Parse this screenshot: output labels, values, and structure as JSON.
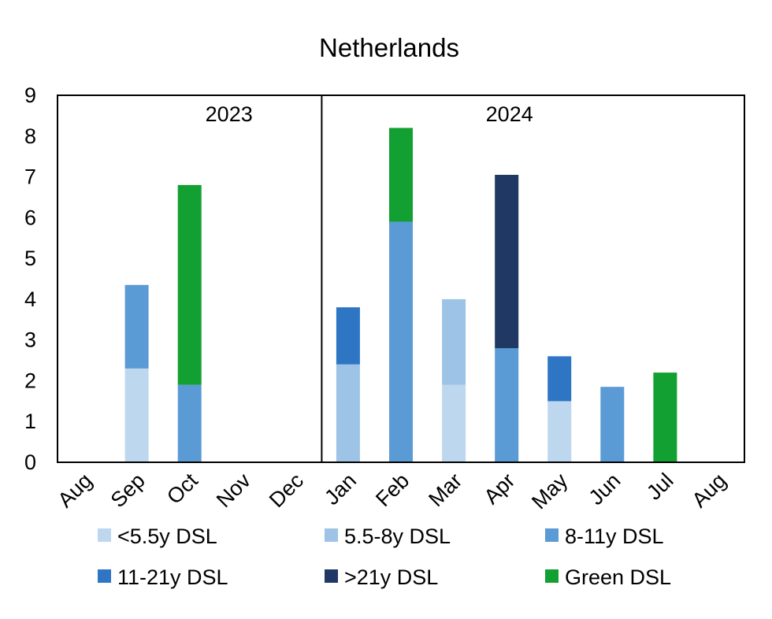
{
  "chart_data": {
    "type": "bar",
    "stacked": true,
    "title": "Netherlands",
    "xlabel": "",
    "ylabel": "",
    "ylim": [
      0,
      9
    ],
    "yticks": [
      0,
      1,
      2,
      3,
      4,
      5,
      6,
      7,
      8,
      9
    ],
    "grid": false,
    "legend_position": "bottom",
    "categories": [
      "Aug",
      "Sep",
      "Oct",
      "Nov",
      "Dec",
      "Jan",
      "Feb",
      "Mar",
      "Apr",
      "May",
      "Jun",
      "Jul",
      "Aug"
    ],
    "year_labels": [
      {
        "label": "2023",
        "categories": [
          "Aug",
          "Sep",
          "Oct",
          "Nov",
          "Dec"
        ]
      },
      {
        "label": "2024",
        "categories": [
          "Jan",
          "Feb",
          "Mar",
          "Apr",
          "May",
          "Jun",
          "Jul",
          "Aug"
        ]
      }
    ],
    "series": [
      {
        "name": "<5.5y DSL",
        "color": "#bdd7ee",
        "values": [
          0,
          2.3,
          0,
          0,
          0,
          0,
          0,
          1.9,
          0,
          1.5,
          0,
          0,
          0
        ]
      },
      {
        "name": "5.5-8y DSL",
        "color": "#9dc3e6",
        "values": [
          0,
          0,
          0,
          0,
          0,
          2.4,
          0,
          2.1,
          0,
          0,
          0,
          0,
          0
        ]
      },
      {
        "name": "8-11y DSL",
        "color": "#5b9bd5",
        "values": [
          0,
          2.05,
          1.9,
          0,
          0,
          0,
          5.9,
          0,
          2.8,
          0,
          1.85,
          0,
          0
        ]
      },
      {
        "name": "11-21y DSL",
        "color": "#2e75c4",
        "values": [
          0,
          0,
          0,
          0,
          0,
          1.4,
          0,
          0,
          0,
          1.1,
          0,
          0,
          0
        ]
      },
      {
        "name": ">21y DSL",
        "color": "#1f3864",
        "values": [
          0,
          0,
          0,
          0,
          0,
          0,
          0,
          0,
          4.25,
          0,
          0,
          0,
          0
        ]
      },
      {
        "name": "Green DSL",
        "color": "#12a032",
        "values": [
          0,
          0,
          4.9,
          0,
          0,
          0,
          2.3,
          0,
          0,
          0,
          0,
          2.2,
          0
        ]
      }
    ]
  }
}
